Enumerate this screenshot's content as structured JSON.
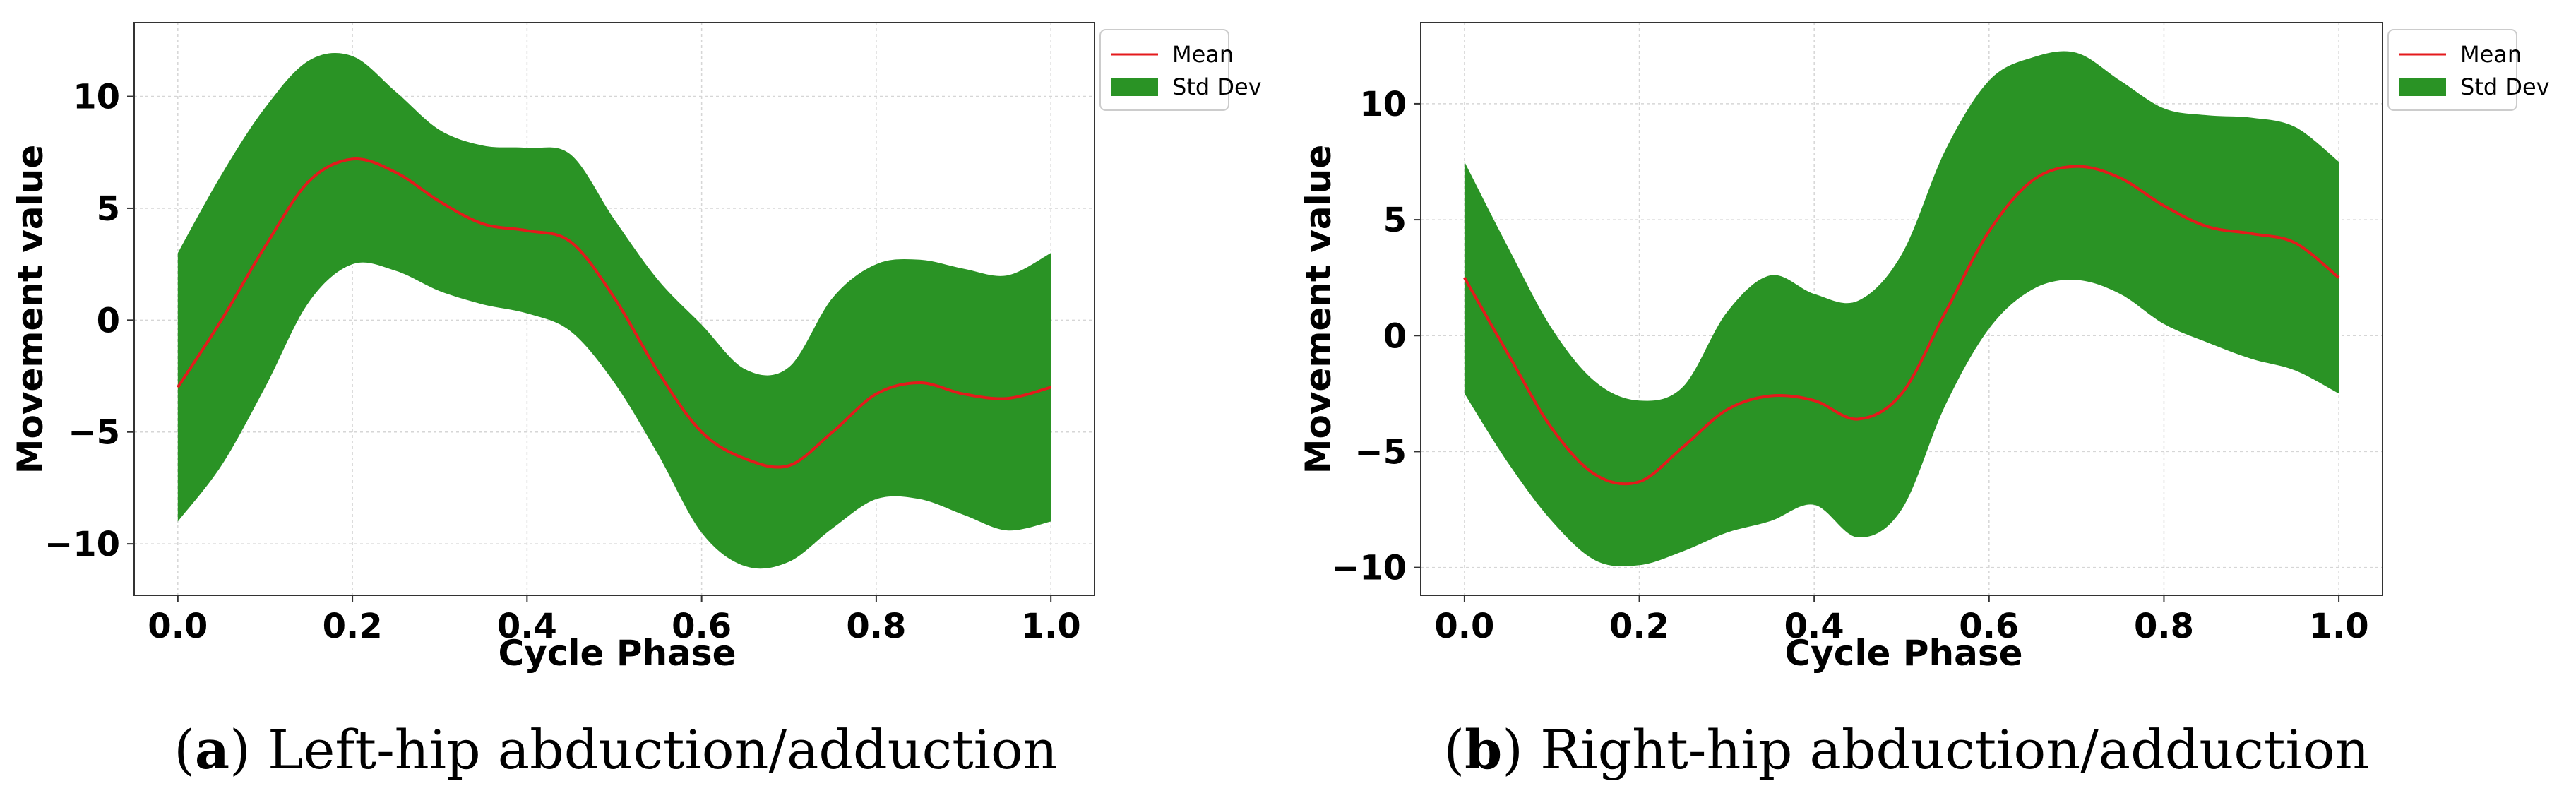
{
  "colors": {
    "mean": "#e41a1c",
    "std": "#2a9325",
    "axes": "#333333",
    "grid": "#d6d6d6"
  },
  "chart_data": [
    {
      "id": "a",
      "type": "area",
      "caption_letter": "a",
      "caption_text": "Left-hip abduction/adduction",
      "xlabel": "Cycle Phase",
      "ylabel": "Movement value",
      "xlim": [
        -0.05,
        1.05
      ],
      "ylim": [
        -12.3,
        13.3
      ],
      "xticks": [
        0.0,
        0.2,
        0.4,
        0.6,
        0.8,
        1.0
      ],
      "xtick_labels": [
        "0.0",
        "0.2",
        "0.4",
        "0.6",
        "0.8",
        "1.0"
      ],
      "yticks": [
        -10,
        -5,
        0,
        5,
        10
      ],
      "ytick_labels": [
        "−10",
        "−5",
        "0",
        "5",
        "10"
      ],
      "legend": [
        "Mean",
        "Std Dev"
      ],
      "x": [
        0.0,
        0.05,
        0.1,
        0.15,
        0.2,
        0.25,
        0.3,
        0.35,
        0.4,
        0.45,
        0.5,
        0.55,
        0.6,
        0.65,
        0.7,
        0.75,
        0.8,
        0.85,
        0.9,
        0.95,
        1.0
      ],
      "series": [
        {
          "name": "Mean",
          "values": [
            -3.0,
            0.0,
            3.3,
            6.2,
            7.2,
            6.6,
            5.3,
            4.3,
            4.0,
            3.5,
            1.0,
            -2.3,
            -5.0,
            -6.2,
            -6.5,
            -5.0,
            -3.3,
            -2.8,
            -3.3,
            -3.5,
            -3.0
          ]
        },
        {
          "name": "Std Dev upper",
          "values": [
            3.0,
            6.5,
            9.5,
            11.6,
            11.8,
            10.2,
            8.5,
            7.8,
            7.7,
            7.4,
            4.5,
            1.8,
            -0.2,
            -2.2,
            -2.1,
            1.0,
            2.5,
            2.7,
            2.3,
            2.0,
            3.0
          ]
        },
        {
          "name": "Std Dev lower",
          "values": [
            -9.0,
            -6.5,
            -3.0,
            0.8,
            2.5,
            2.2,
            1.3,
            0.7,
            0.3,
            -0.5,
            -2.8,
            -6.0,
            -9.5,
            -11.0,
            -10.8,
            -9.3,
            -8.0,
            -8.0,
            -8.7,
            -9.4,
            -9.0
          ]
        }
      ]
    },
    {
      "id": "b",
      "type": "area",
      "caption_letter": "b",
      "caption_text": "Right-hip abduction/adduction",
      "xlabel": "Cycle Phase",
      "ylabel": "Movement value",
      "xlim": [
        -0.05,
        1.05
      ],
      "ylim": [
        -11.2,
        13.5
      ],
      "xticks": [
        0.0,
        0.2,
        0.4,
        0.6,
        0.8,
        1.0
      ],
      "xtick_labels": [
        "0.0",
        "0.2",
        "0.4",
        "0.6",
        "0.8",
        "1.0"
      ],
      "yticks": [
        -10,
        -5,
        0,
        5,
        10
      ],
      "ytick_labels": [
        "−10",
        "−5",
        "0",
        "5",
        "10"
      ],
      "legend": [
        "Mean",
        "Std Dev"
      ],
      "x": [
        0.0,
        0.05,
        0.1,
        0.15,
        0.2,
        0.25,
        0.3,
        0.35,
        0.4,
        0.45,
        0.5,
        0.55,
        0.6,
        0.65,
        0.7,
        0.75,
        0.8,
        0.85,
        0.9,
        0.95,
        1.0
      ],
      "series": [
        {
          "name": "Mean",
          "values": [
            2.5,
            -0.8,
            -4.0,
            -6.0,
            -6.3,
            -4.8,
            -3.2,
            -2.6,
            -2.8,
            -3.6,
            -2.5,
            1.0,
            4.5,
            6.7,
            7.3,
            6.8,
            5.6,
            4.7,
            4.4,
            4.0,
            2.5
          ]
        },
        {
          "name": "Std Dev upper",
          "values": [
            7.5,
            3.8,
            0.3,
            -2.0,
            -2.8,
            -2.2,
            1.0,
            2.6,
            1.8,
            1.5,
            3.5,
            8.0,
            11.0,
            12.0,
            12.2,
            11.0,
            9.8,
            9.5,
            9.4,
            9.0,
            7.5
          ]
        },
        {
          "name": "Std Dev lower",
          "values": [
            -2.5,
            -5.5,
            -8.0,
            -9.7,
            -9.9,
            -9.3,
            -8.5,
            -8.0,
            -7.3,
            -8.7,
            -7.5,
            -3.0,
            0.3,
            2.0,
            2.4,
            1.8,
            0.5,
            -0.3,
            -1.0,
            -1.5,
            -2.5
          ]
        }
      ]
    }
  ]
}
